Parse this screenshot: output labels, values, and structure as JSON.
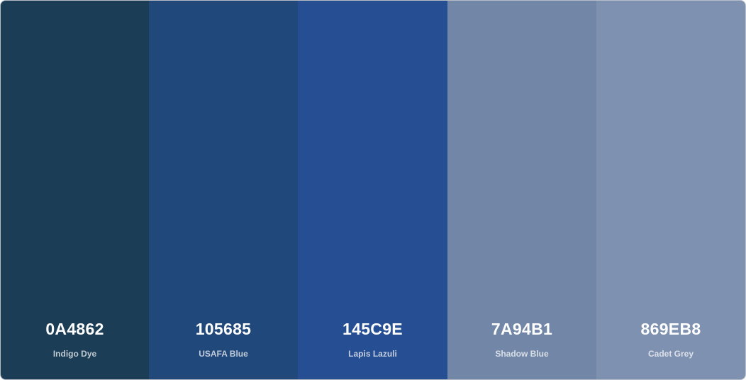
{
  "palette": {
    "swatches": [
      {
        "hex": "0A4862",
        "name": "Indigo Dye",
        "color": "#1b3d56"
      },
      {
        "hex": "105685",
        "name": "USAFA Blue",
        "color": "#21487b"
      },
      {
        "hex": "145C9E",
        "name": "Lapis Lazuli",
        "color": "#254e93"
      },
      {
        "hex": "7A94B1",
        "name": "Shadow Blue",
        "color": "#7287a7"
      },
      {
        "hex": "869EB8",
        "name": "Cadet Grey",
        "color": "#7f91b0"
      }
    ]
  }
}
